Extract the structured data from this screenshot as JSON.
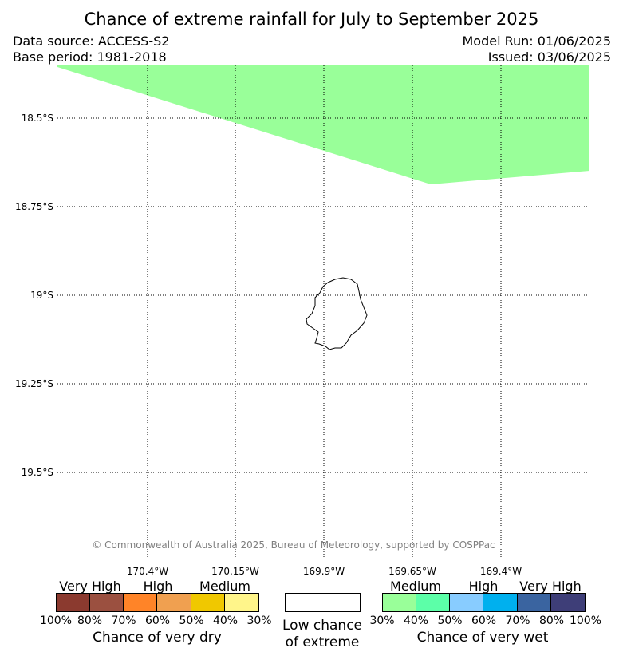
{
  "title": "Chance of extreme rainfall for July to September 2025",
  "data_source": "Data source: ACCESS-S2",
  "base_period": "Base period: 1981-2018",
  "model_run": "Model Run: 01/06/2025",
  "issued": "Issued: 03/06/2025",
  "copyright": "© Commonwealth of Australia 2025, Bureau of Meteorology, supported by COSPPac",
  "map": {
    "lat_labels": [
      "18.5°S",
      "18.75°S",
      "19°S",
      "19.25°S",
      "19.5°S"
    ],
    "lon_labels": [
      "170.4°W",
      "170.15°W",
      "169.9°W",
      "169.65°W",
      "169.4°W"
    ],
    "region_category": "Medium chance of very wet",
    "region_color": "#99ff99",
    "island_outline_color": "#000000"
  },
  "legend": {
    "dry": {
      "bands": [
        "Very High",
        "High",
        "Medium"
      ],
      "colors": [
        "#8b3a2f",
        "#9b5040",
        "#ff8428",
        "#f0a050",
        "#f0c800",
        "#fff58a"
      ],
      "percentages": [
        "100%",
        "80%",
        "70%",
        "60%",
        "50%",
        "40%",
        "30%"
      ],
      "caption": "Chance of very dry"
    },
    "low": {
      "color": "#ffffff",
      "caption_line1": "Low chance",
      "caption_line2": "of extreme"
    },
    "wet": {
      "bands": [
        "Medium",
        "High",
        "Very High"
      ],
      "colors": [
        "#99ff99",
        "#5cffa8",
        "#88ccff",
        "#00b0ee",
        "#3a64a0",
        "#3e3e78"
      ],
      "percentages": [
        "30%",
        "40%",
        "50%",
        "60%",
        "70%",
        "80%",
        "100%"
      ],
      "caption": "Chance of very wet"
    }
  }
}
